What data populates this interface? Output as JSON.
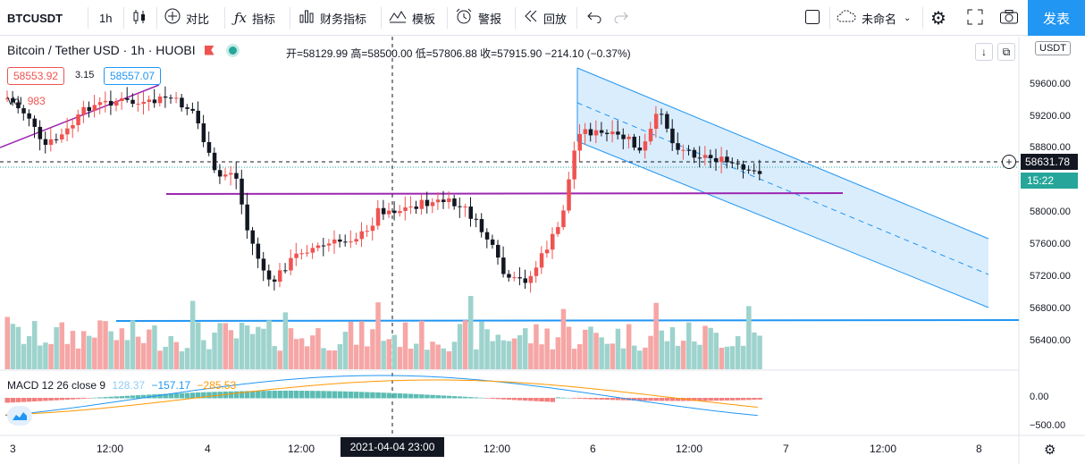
{
  "toolbar": {
    "symbol": "BTCUSDT",
    "interval": "1h",
    "compare": "对比",
    "indicators": "指标",
    "financials": "财务指标",
    "templates": "模板",
    "alert": "警报",
    "replay": "回放",
    "layout_name": "未命名",
    "publish": "发表",
    "icons": {
      "candles": "candlestick-icon",
      "compare": "plus-circle-icon",
      "indicators": "fx-icon",
      "financials": "bar-chart-icon",
      "templates": "templates-icon",
      "alert": "alarm-clock-icon",
      "replay": "rewind-icon",
      "undo": "undo-icon",
      "redo": "redo-icon",
      "layout": "square-icon",
      "cloud": "cloud-icon",
      "settings": "gear-icon",
      "fullscreen": "fullscreen-icon",
      "snapshot": "camera-icon"
    }
  },
  "legend": {
    "title": "Bitcoin / Tether USD · 1h · HUOBI",
    "ohlc": "开=58129.99 高=58500.00 低=57806.88 收=57915.90 −214.10 (−0.37%)",
    "bid": "58553.92",
    "spread": "3.15",
    "ask": "58557.07",
    "vol_label": "Vol",
    "vol_value": "983"
  },
  "price_axis": {
    "currency": "USDT",
    "labels": [
      "59600.00",
      "59200.00",
      "58800.00",
      "58000.00",
      "57600.00",
      "57200.00",
      "56800.00",
      "56400.00"
    ],
    "current_price": "58631.78",
    "countdown": "15:22"
  },
  "macd": {
    "label": "MACD 12 26 close 9",
    "hist": "128.37",
    "macd": "−157.17",
    "signal": "−285.53",
    "axis_labels": [
      "0.00",
      "−500.00"
    ]
  },
  "time_axis": {
    "labels": [
      "3",
      "12:00",
      "4",
      "12:00",
      "12:00",
      "6",
      "12:00",
      "7",
      "12:00",
      "8"
    ],
    "crosshair": "2021-04-04  23:00"
  },
  "colors": {
    "up": "#ef5350",
    "down": "#131722",
    "channel": "#2196f3",
    "purple_line": "#9c27b0",
    "blue_line": "#2196f3",
    "accent": "#2196f3"
  }
}
